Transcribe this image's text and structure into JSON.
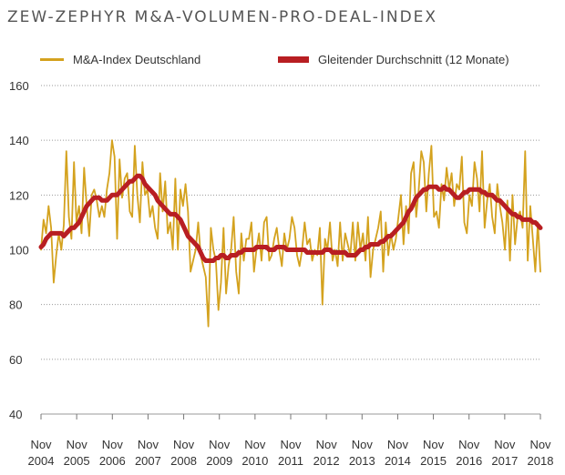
{
  "chart_data": {
    "type": "line",
    "title": "ZEW-ZEPHYR M&A-VOLUMEN-PRO-DEAL-INDEX",
    "xlabel": "",
    "ylabel": "",
    "ylim": [
      40,
      160
    ],
    "yticks": [
      40,
      60,
      80,
      100,
      120,
      140,
      160
    ],
    "grid": true,
    "legend_position": "top",
    "x_ticks": [
      {
        "month": "Nov",
        "year": "2004"
      },
      {
        "month": "Nov",
        "year": "2005"
      },
      {
        "month": "Nov",
        "year": "2006"
      },
      {
        "month": "Nov",
        "year": "2007"
      },
      {
        "month": "Nov",
        "year": "2008"
      },
      {
        "month": "Nov",
        "year": "2009"
      },
      {
        "month": "Nov",
        "year": "2010"
      },
      {
        "month": "Nov",
        "year": "2011"
      },
      {
        "month": "Nov",
        "year": "2012"
      },
      {
        "month": "Nov",
        "year": "2013"
      },
      {
        "month": "Nov",
        "year": "2014"
      },
      {
        "month": "Nov",
        "year": "2015"
      },
      {
        "month": "Nov",
        "year": "2016"
      },
      {
        "month": "Nov",
        "year": "2017"
      },
      {
        "month": "Nov",
        "year": "2018"
      }
    ],
    "series": [
      {
        "name": "M&A-Index Deutschland",
        "color": "#D4A21E",
        "values": [
          100,
          111,
          106,
          116,
          108,
          88,
          98,
          106,
          100,
          109,
          136,
          112,
          104,
          132,
          110,
          116,
          106,
          130,
          116,
          105,
          120,
          122,
          118,
          112,
          116,
          112,
          122,
          128,
          140,
          134,
          104,
          133,
          119,
          126,
          128,
          114,
          112,
          138,
          120,
          110,
          132,
          120,
          122,
          112,
          116,
          108,
          104,
          128,
          114,
          125,
          106,
          110,
          100,
          126,
          100,
          122,
          116,
          124,
          114,
          92,
          96,
          100,
          110,
          98,
          94,
          90,
          72,
          108,
          100,
          96,
          78,
          88,
          108,
          84,
          94,
          100,
          112,
          92,
          84,
          106,
          96,
          104,
          104,
          110,
          92,
          100,
          106,
          96,
          110,
          112,
          96,
          98,
          104,
          108,
          100,
          94,
          106,
          100,
          104,
          112,
          108,
          98,
          94,
          100,
          110,
          102,
          104,
          96,
          100,
          98,
          108,
          80,
          104,
          100,
          110,
          96,
          100,
          94,
          110,
          96,
          106,
          102,
          98,
          110,
          96,
          110,
          100,
          106,
          96,
          112,
          90,
          100,
          104,
          108,
          114,
          92,
          110,
          98,
          106,
          100,
          104,
          112,
          120,
          102,
          116,
          106,
          128,
          132,
          112,
          122,
          136,
          132,
          114,
          128,
          138,
          112,
          114,
          108,
          124,
          118,
          130,
          122,
          128,
          116,
          124,
          122,
          134,
          110,
          106,
          120,
          116,
          132,
          126,
          114,
          136,
          108,
          118,
          124,
          112,
          106,
          124,
          116,
          110,
          100,
          118,
          96,
          120,
          102,
          112,
          114,
          108,
          136,
          96,
          116,
          104,
          92,
          110,
          92
        ]
      },
      {
        "name": "Gleitender Durchschnitt (12 Monate)",
        "color": "#B81E22",
        "values": [
          101,
          102,
          104,
          105,
          106,
          106,
          106,
          106,
          106,
          105,
          106,
          107,
          108,
          108,
          109,
          110,
          112,
          114,
          116,
          117,
          118,
          119,
          119,
          119,
          118,
          118,
          118,
          119,
          120,
          120,
          120,
          121,
          122,
          123,
          124,
          125,
          125,
          126,
          127,
          127,
          126,
          124,
          123,
          122,
          121,
          120,
          118,
          117,
          116,
          115,
          114,
          113,
          113,
          113,
          112,
          111,
          109,
          107,
          105,
          104,
          103,
          102,
          101,
          99,
          97,
          96,
          96,
          96,
          96,
          97,
          97,
          98,
          98,
          97,
          97,
          98,
          98,
          98,
          99,
          99,
          100,
          100,
          100,
          100,
          100,
          101,
          101,
          101,
          101,
          101,
          100,
          100,
          100,
          101,
          101,
          101,
          101,
          100,
          100,
          100,
          100,
          100,
          100,
          100,
          100,
          99,
          99,
          99,
          99,
          99,
          99,
          99,
          100,
          100,
          100,
          99,
          99,
          99,
          99,
          99,
          99,
          98,
          98,
          98,
          98,
          99,
          100,
          100,
          101,
          101,
          102,
          102,
          102,
          102,
          103,
          103,
          104,
          105,
          105,
          106,
          107,
          108,
          109,
          110,
          112,
          114,
          115,
          117,
          119,
          120,
          121,
          122,
          122,
          123,
          123,
          123,
          123,
          122,
          122,
          123,
          122,
          122,
          121,
          120,
          119,
          119,
          120,
          121,
          121,
          122,
          122,
          122,
          122,
          122,
          121,
          121,
          120,
          120,
          120,
          119,
          118,
          118,
          117,
          116,
          115,
          114,
          113,
          113,
          112,
          112,
          111,
          111,
          111,
          111,
          110,
          110,
          109,
          108
        ]
      }
    ]
  }
}
